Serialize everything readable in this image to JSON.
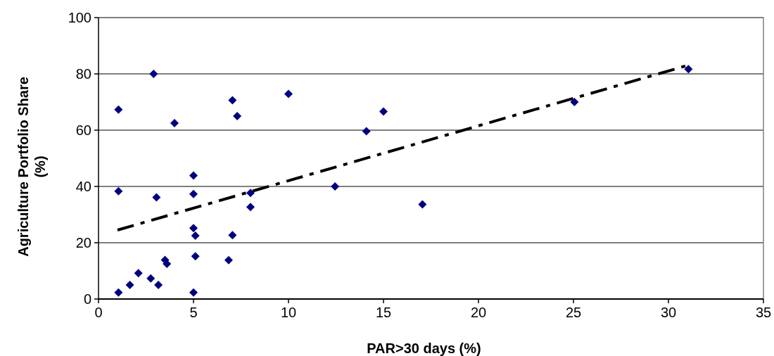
{
  "chart_data": {
    "type": "scatter",
    "xlabel": "PAR>30 days (%)",
    "ylabel": "Agriculture Portfolio Share (%)",
    "xlim": [
      0,
      35
    ],
    "xticks": [
      0,
      5,
      10,
      15,
      20,
      25,
      30,
      35
    ],
    "ylim": [
      0,
      100
    ],
    "yticks": [
      0,
      20,
      40,
      60,
      80,
      100
    ],
    "grid": "y",
    "series": [
      {
        "color": "#000080",
        "marker": "diamond",
        "x": [
          1.05,
          1.05,
          1.05,
          2.9,
          4.0,
          7.05,
          7.3,
          10.0,
          3.05,
          5.0,
          5.0,
          8.0,
          8.0,
          5.0,
          5.1,
          7.05,
          5.1,
          6.85,
          3.5,
          3.6,
          2.1,
          1.65,
          2.75,
          3.15,
          5.0,
          15.0,
          14.1,
          12.45,
          17.05,
          25.05,
          31.05
        ],
        "values": [
          2.3,
          67.3,
          38.3,
          80,
          62.5,
          70.6,
          65,
          72.9,
          36.1,
          43.9,
          37.3,
          37.7,
          32.7,
          25.2,
          22.5,
          22.7,
          15.2,
          13.8,
          13.9,
          12.5,
          9.2,
          5,
          7.3,
          5,
          2.3,
          66.6,
          59.6,
          40,
          33.6,
          70,
          81.7
        ]
      },
      {
        "type": "line",
        "color": "#000000",
        "line_style": "dashed",
        "marker": "none",
        "x": [
          1,
          31
        ],
        "values": [
          24.5,
          83
        ]
      }
    ]
  }
}
